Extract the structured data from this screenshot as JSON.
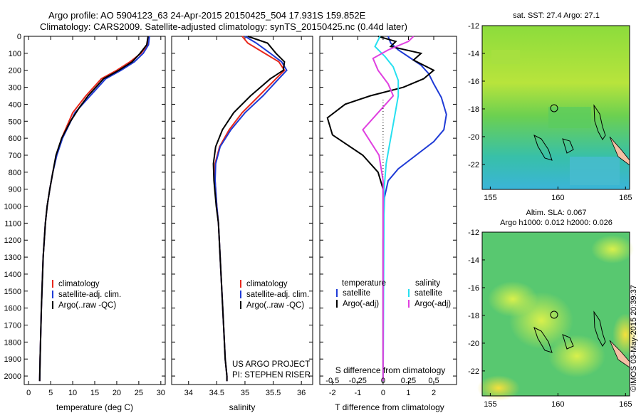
{
  "header": {
    "line1": "Argo profile: AO 5904123_63 24-Apr-2015 20150425_504 17.931S 159.852E",
    "line2": "Climatology: CARS2009. Satellite-adjusted climatology: synTS_20150425.nc (0.44d later)"
  },
  "colors": {
    "climatology": "#e8281c",
    "satellite": "#1f3bd6",
    "argo": "#000000",
    "sal_satellite": "#27e0f0",
    "sal_argo": "#e040e0"
  },
  "chart_data": [
    {
      "name": "temperature-profile",
      "type": "line",
      "xlabel": "temperature (deg C)",
      "ylim": [
        2050,
        0
      ],
      "xlim": [
        -1,
        31
      ],
      "xticks": [
        "0",
        "5",
        "10",
        "15",
        "20",
        "25",
        "30"
      ],
      "xtick_values": [
        0,
        5,
        10,
        15,
        20,
        25,
        30
      ],
      "yticks": [
        "0",
        "100",
        "200",
        "300",
        "400",
        "500",
        "600",
        "700",
        "800",
        "900",
        "1000",
        "1100",
        "1200",
        "1300",
        "1400",
        "1500",
        "1600",
        "1700",
        "1800",
        "1900",
        "2000"
      ],
      "ytick_values": [
        0,
        100,
        200,
        300,
        400,
        500,
        600,
        700,
        800,
        900,
        1000,
        1100,
        1200,
        1300,
        1400,
        1500,
        1600,
        1700,
        1800,
        1900,
        2000
      ],
      "legend": [
        "climatology",
        "satellite-adj. clim.",
        "Argo(..raw -QC)"
      ],
      "series": [
        {
          "name": "climatology",
          "x": [
            27.3,
            27.0,
            25.5,
            23.0,
            20.0,
            16.5,
            13.0,
            10.0,
            7.5,
            6.3,
            5.5,
            4.8,
            4.2,
            3.8,
            3.3,
            2.9,
            2.6,
            2.5
          ],
          "y": [
            0,
            50,
            100,
            150,
            200,
            250,
            350,
            450,
            600,
            700,
            800,
            900,
            1000,
            1100,
            1300,
            1600,
            1900,
            2030
          ]
        },
        {
          "name": "satellite-adj. clim.",
          "x": [
            27.4,
            27.2,
            26.0,
            24.0,
            21.0,
            17.5,
            14.0,
            10.5,
            7.7,
            6.4,
            5.5,
            4.8,
            4.2,
            3.8,
            3.3,
            2.9,
            2.6,
            2.5
          ],
          "y": [
            0,
            50,
            100,
            150,
            200,
            250,
            350,
            450,
            600,
            700,
            800,
            900,
            1000,
            1100,
            1300,
            1600,
            1900,
            2030
          ]
        },
        {
          "name": "Argo(..raw -QC)",
          "x": [
            27.1,
            26.8,
            25.3,
            23.5,
            20.5,
            17.0,
            13.5,
            11.5,
            9.5,
            7.5,
            6.2,
            5.5,
            4.8,
            4.2,
            3.8,
            3.3,
            2.9,
            2.6,
            2.5
          ],
          "y": [
            0,
            50,
            100,
            150,
            200,
            250,
            350,
            420,
            500,
            600,
            700,
            800,
            900,
            1000,
            1100,
            1300,
            1600,
            1900,
            2030
          ]
        }
      ]
    },
    {
      "name": "salinity-profile",
      "type": "line",
      "xlabel": "salinity",
      "ylim": [
        2050,
        0
      ],
      "xlim": [
        33.7,
        36.2
      ],
      "xticks": [
        "34",
        "34.5",
        "35",
        "35.5",
        "36"
      ],
      "xtick_values": [
        34,
        34.5,
        35,
        35.5,
        36
      ],
      "legend": [
        "climatology",
        "satellite-adj. clim.",
        "Argo(..raw -QC)"
      ],
      "annotation": [
        "US ARGO PROJECT",
        "PI: STEPHEN RISER"
      ],
      "series": [
        {
          "name": "climatology",
          "x": [
            34.95,
            35.05,
            35.35,
            35.6,
            35.7,
            35.55,
            35.25,
            34.95,
            34.72,
            34.55,
            34.47,
            34.47,
            34.5,
            34.53,
            34.56,
            34.59,
            34.62,
            34.65,
            34.68,
            34.68
          ],
          "y": [
            0,
            40,
            100,
            150,
            200,
            250,
            350,
            450,
            550,
            650,
            750,
            850,
            1000,
            1100,
            1300,
            1500,
            1700,
            1900,
            2000,
            2030
          ]
        },
        {
          "name": "satellite-adj. clim.",
          "x": [
            35.0,
            35.2,
            35.45,
            35.65,
            35.74,
            35.6,
            35.32,
            35.0,
            34.75,
            34.56,
            34.48,
            34.47,
            34.5,
            34.53,
            34.56,
            34.59,
            34.62,
            34.65,
            34.68,
            34.68
          ],
          "y": [
            0,
            40,
            100,
            150,
            200,
            250,
            350,
            450,
            550,
            650,
            750,
            850,
            1000,
            1100,
            1300,
            1500,
            1700,
            1900,
            2000,
            2030
          ]
        },
        {
          "name": "Argo(..raw -QC)",
          "x": [
            35.05,
            35.4,
            35.55,
            35.7,
            35.68,
            35.45,
            35.1,
            34.8,
            34.6,
            34.48,
            34.44,
            34.45,
            34.49,
            34.53,
            34.56,
            34.59,
            34.62,
            34.65,
            34.68,
            34.68
          ],
          "y": [
            0,
            40,
            100,
            150,
            200,
            250,
            350,
            450,
            550,
            650,
            750,
            850,
            1000,
            1100,
            1300,
            1500,
            1700,
            1900,
            2000,
            2030
          ]
        }
      ]
    },
    {
      "name": "difference-profile",
      "type": "line",
      "xlabel": "T difference from climatology",
      "xlabel_top": "S difference from climatology",
      "ylim": [
        2050,
        0
      ],
      "xlim": [
        -2.5,
        2.9
      ],
      "xticks": [
        "-2",
        "-1",
        "0",
        "1",
        "2"
      ],
      "xtick_values": [
        -2,
        -1,
        0,
        1,
        2
      ],
      "s_ticks": [
        "-0.5",
        "-0.25",
        "0",
        "0.25",
        "0.5"
      ],
      "s_tick_values": [
        -0.5,
        -0.25,
        0,
        0.25,
        0.5
      ],
      "legend_titles": [
        "temperature",
        "salinity"
      ],
      "legend": [
        "satellite",
        "Argo(-adj)",
        "satellite",
        "Argo(-adj)"
      ],
      "series": [
        {
          "name": "temperature satellite",
          "x": [
            0.2,
            0.3,
            0.6,
            1.1,
            1.5,
            1.8,
            2.0,
            2.3,
            2.5,
            2.4,
            2.0,
            1.3,
            0.6,
            0.2,
            0.05,
            0.0,
            0.0
          ],
          "y": [
            0,
            40,
            80,
            130,
            170,
            220,
            280,
            360,
            460,
            550,
            620,
            700,
            780,
            850,
            950,
            1200,
            2030
          ]
        },
        {
          "name": "temperature Argo(-adj)",
          "x": [
            -0.2,
            0.5,
            0.3,
            1.5,
            1.2,
            2.0,
            1.6,
            0.8,
            -0.5,
            -1.5,
            -2.2,
            -2.0,
            -0.8,
            -0.2,
            0.0,
            0.0
          ],
          "y": [
            0,
            30,
            60,
            100,
            140,
            200,
            250,
            300,
            350,
            400,
            480,
            580,
            700,
            800,
            900,
            2030
          ]
        },
        {
          "name": "salinity satellite",
          "x": [
            -0.03,
            -0.08,
            0.02,
            0.1,
            0.15,
            0.15,
            0.12,
            0.09,
            0.06,
            0.03,
            0.01,
            0.0
          ],
          "y": [
            0,
            60,
            120,
            180,
            260,
            350,
            450,
            550,
            650,
            750,
            900,
            2030
          ]
        },
        {
          "name": "salinity Argo(-adj)",
          "x": [
            0.3,
            0.25,
            0.05,
            -0.1,
            -0.05,
            0.05,
            0.1,
            -0.05,
            -0.2,
            -0.04,
            0.0,
            0.0
          ],
          "y": [
            0,
            30,
            80,
            130,
            200,
            280,
            350,
            450,
            550,
            700,
            850,
            2030
          ]
        }
      ]
    },
    {
      "name": "sst-map",
      "type": "heatmap",
      "title": "sat. SST: 27.4  Argo: 27.1",
      "xticks": [
        "155",
        "160",
        "165"
      ],
      "xtick_values": [
        155,
        160,
        165
      ],
      "yticks": [
        "-12",
        "-14",
        "-16",
        "-18",
        "-20",
        "-22"
      ],
      "ytick_values": [
        -12,
        -14,
        -16,
        -18,
        -20,
        -22
      ],
      "xlim": [
        154.4,
        165.3
      ],
      "ylim": [
        -23.8,
        -12
      ]
    },
    {
      "name": "sla-map",
      "type": "heatmap",
      "title": "Altim. SLA: 0.067",
      "subtitle": "Argo h1000: 0.012 h2000: 0.026",
      "xticks": [
        "155",
        "160",
        "165"
      ],
      "xtick_values": [
        155,
        160,
        165
      ],
      "yticks": [
        "-12",
        "-14",
        "-16",
        "-18",
        "-20",
        "-22"
      ],
      "ytick_values": [
        -12,
        -14,
        -16,
        -18,
        -20,
        -22
      ],
      "xlim": [
        154.4,
        165.3
      ],
      "ylim": [
        -23.8,
        -12
      ]
    }
  ],
  "side_note": "©IMOS 03-May-2015 20:39:37"
}
